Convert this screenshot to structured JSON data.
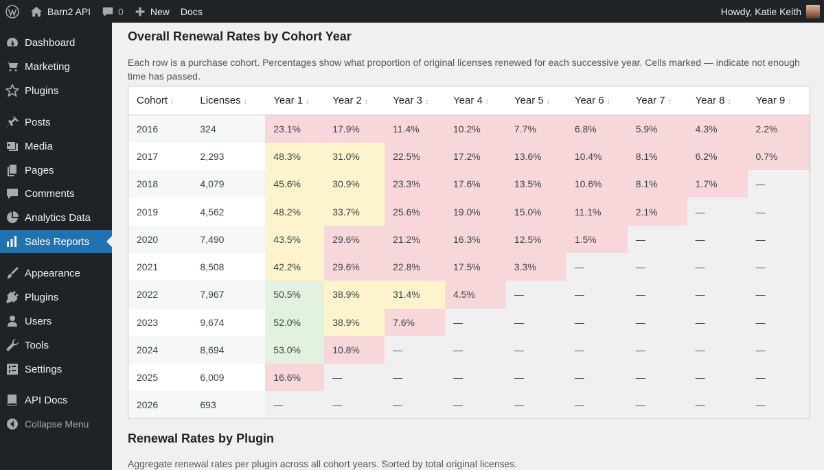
{
  "adminbar": {
    "site_name": "Barn2 API",
    "comments_count": "0",
    "new_label": "New",
    "docs_label": "Docs",
    "howdy": "Howdy, Katie Keith"
  },
  "sidebar": {
    "items": [
      {
        "label": "Dashboard",
        "icon": "dashboard-icon"
      },
      {
        "label": "Marketing",
        "icon": "cart-icon"
      },
      {
        "label": "Plugins",
        "icon": "star-icon"
      },
      {
        "label": "Posts",
        "icon": "pin-icon"
      },
      {
        "label": "Media",
        "icon": "media-icon"
      },
      {
        "label": "Pages",
        "icon": "pages-icon"
      },
      {
        "label": "Comments",
        "icon": "comment-icon"
      },
      {
        "label": "Analytics Data",
        "icon": "pie-chart-icon"
      },
      {
        "label": "Sales Reports",
        "icon": "bar-chart-icon"
      },
      {
        "label": "Appearance",
        "icon": "brush-icon"
      },
      {
        "label": "Plugins",
        "icon": "plugin-icon"
      },
      {
        "label": "Users",
        "icon": "user-icon"
      },
      {
        "label": "Tools",
        "icon": "wrench-icon"
      },
      {
        "label": "Settings",
        "icon": "settings-icon"
      },
      {
        "label": "API Docs",
        "icon": "book-icon"
      },
      {
        "label": "Collapse Menu",
        "icon": "collapse-icon"
      }
    ]
  },
  "cohort_section": {
    "title": "Overall Renewal Rates by Cohort Year",
    "description": "Each row is a purchase cohort. Percentages show what proportion of original licenses renewed for each successive year. Cells marked — indicate not enough time has passed.",
    "headers": [
      "Cohort",
      "Licenses",
      "Year 1",
      "Year 2",
      "Year 3",
      "Year 4",
      "Year 5",
      "Year 6",
      "Year 7",
      "Year 8",
      "Year 9"
    ],
    "rows": [
      {
        "cohort": "2016",
        "licenses": "324",
        "years": [
          "23.1%",
          "17.9%",
          "11.4%",
          "10.2%",
          "7.7%",
          "6.8%",
          "5.9%",
          "4.3%",
          "2.2%"
        ]
      },
      {
        "cohort": "2017",
        "licenses": "2,293",
        "years": [
          "48.3%",
          "31.0%",
          "22.5%",
          "17.2%",
          "13.6%",
          "10.4%",
          "8.1%",
          "6.2%",
          "0.7%"
        ]
      },
      {
        "cohort": "2018",
        "licenses": "4,079",
        "years": [
          "45.6%",
          "30.9%",
          "23.3%",
          "17.6%",
          "13.5%",
          "10.6%",
          "8.1%",
          "1.7%",
          "—"
        ]
      },
      {
        "cohort": "2019",
        "licenses": "4,562",
        "years": [
          "48.2%",
          "33.7%",
          "25.6%",
          "19.0%",
          "15.0%",
          "11.1%",
          "2.1%",
          "—",
          "—"
        ]
      },
      {
        "cohort": "2020",
        "licenses": "7,490",
        "years": [
          "43.5%",
          "29.6%",
          "21.2%",
          "16.3%",
          "12.5%",
          "1.5%",
          "—",
          "—",
          "—"
        ]
      },
      {
        "cohort": "2021",
        "licenses": "8,508",
        "years": [
          "42.2%",
          "29.6%",
          "22.8%",
          "17.5%",
          "3.3%",
          "—",
          "—",
          "—",
          "—"
        ]
      },
      {
        "cohort": "2022",
        "licenses": "7,967",
        "years": [
          "50.5%",
          "38.9%",
          "31.4%",
          "4.5%",
          "—",
          "—",
          "—",
          "—",
          "—"
        ]
      },
      {
        "cohort": "2023",
        "licenses": "9,674",
        "years": [
          "52.0%",
          "38.9%",
          "7.6%",
          "—",
          "—",
          "—",
          "—",
          "—",
          "—"
        ]
      },
      {
        "cohort": "2024",
        "licenses": "8,694",
        "years": [
          "53.0%",
          "10.8%",
          "—",
          "—",
          "—",
          "—",
          "—",
          "—",
          "—"
        ]
      },
      {
        "cohort": "2025",
        "licenses": "6,009",
        "years": [
          "16.6%",
          "—",
          "—",
          "—",
          "—",
          "—",
          "—",
          "—",
          "—"
        ]
      },
      {
        "cohort": "2026",
        "licenses": "693",
        "years": [
          "—",
          "—",
          "—",
          "—",
          "—",
          "—",
          "—",
          "—",
          "—"
        ]
      }
    ]
  },
  "plugin_section": {
    "title": "Renewal Rates by Plugin",
    "description": "Aggregate renewal rates per plugin across all cohort years. Sorted by total original licenses."
  },
  "colors": {
    "admin_dark": "#1d2327",
    "accent_blue": "#2271b1",
    "cell_red": "#f8d7da",
    "cell_yellow": "#fdf3cd",
    "cell_green": "#e3f1df"
  }
}
